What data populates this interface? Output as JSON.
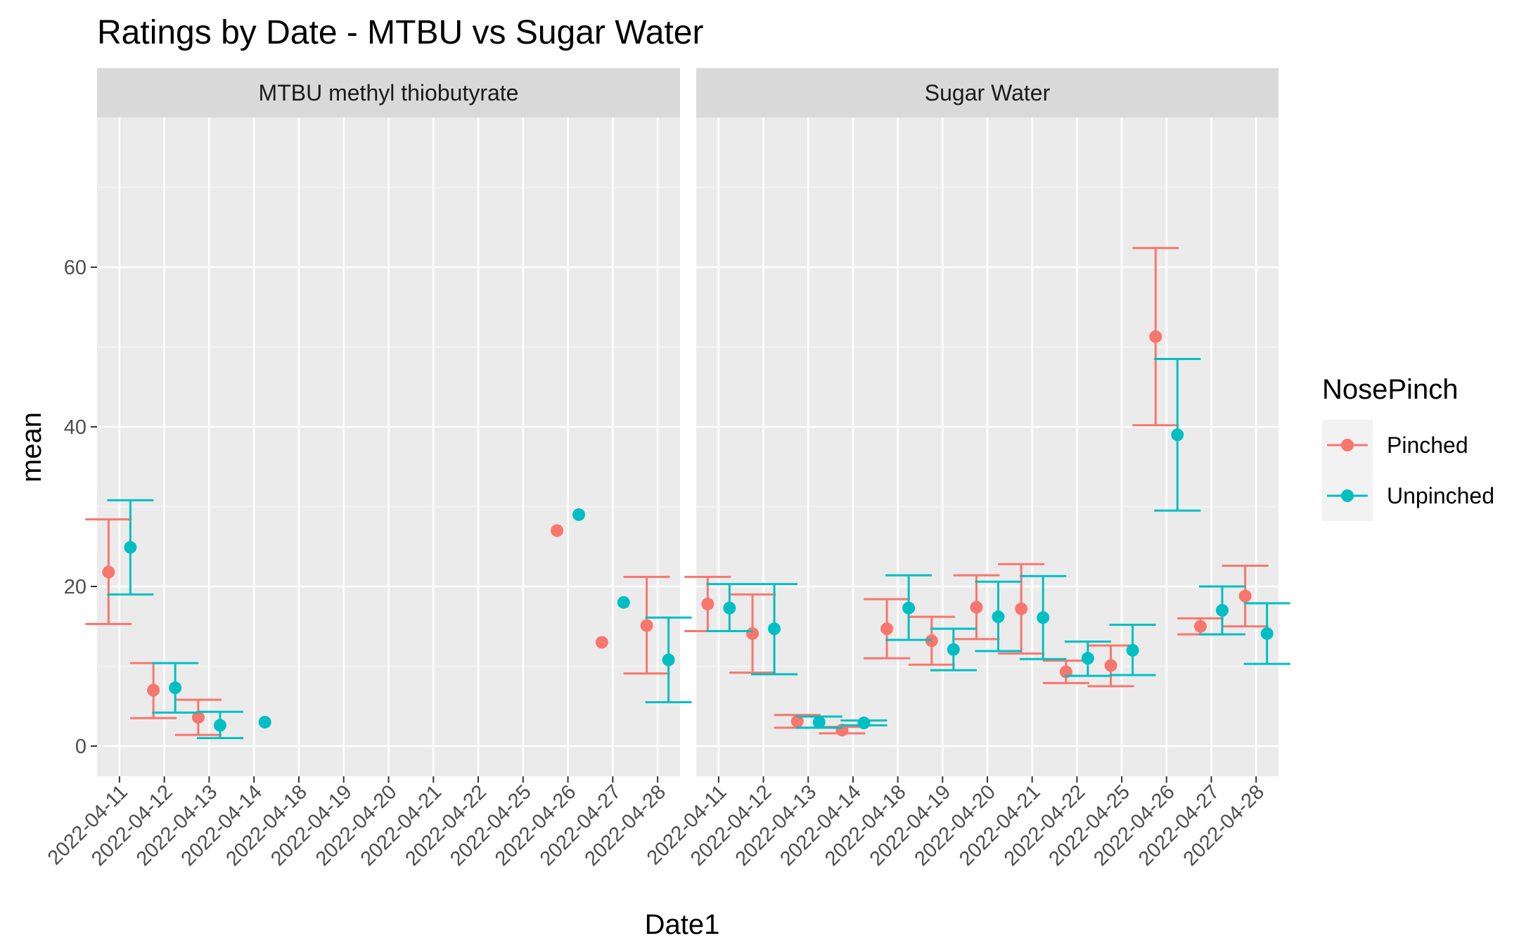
{
  "chart_data": {
    "type": "scatter",
    "title": "Ratings by Date - MTBU vs Sugar Water",
    "xlabel": "Date1",
    "ylabel": "mean",
    "ylim": [
      -4,
      79
    ],
    "yticks": [
      0,
      20,
      40,
      60
    ],
    "grid": true,
    "legend": {
      "title": "NosePinch",
      "position": "right"
    },
    "colors": {
      "Pinched": "#F8766D",
      "Unpinched": "#00BFC4"
    },
    "panels": [
      {
        "label": "MTBU methyl thiobutyrate",
        "categories": [
          "2022-04-11",
          "2022-04-12",
          "2022-04-13",
          "2022-04-14",
          "2022-04-18",
          "2022-04-19",
          "2022-04-20",
          "2022-04-21",
          "2022-04-22",
          "2022-04-25",
          "2022-04-26",
          "2022-04-27",
          "2022-04-28"
        ],
        "series": [
          {
            "name": "Pinched",
            "points": [
              {
                "x": "2022-04-11",
                "y": 21.8,
                "ymin": 15.3,
                "ymax": 28.4
              },
              {
                "x": "2022-04-12",
                "y": 7.0,
                "ymin": 3.5,
                "ymax": 10.4
              },
              {
                "x": "2022-04-13",
                "y": 3.6,
                "ymin": 1.4,
                "ymax": 5.8
              },
              {
                "x": "2022-04-26",
                "y": 27.0
              },
              {
                "x": "2022-04-27",
                "y": 13.0
              },
              {
                "x": "2022-04-28",
                "y": 15.1,
                "ymin": 9.1,
                "ymax": 21.2
              }
            ]
          },
          {
            "name": "Unpinched",
            "points": [
              {
                "x": "2022-04-11",
                "y": 24.9,
                "ymin": 19.0,
                "ymax": 30.8
              },
              {
                "x": "2022-04-12",
                "y": 7.3,
                "ymin": 4.2,
                "ymax": 10.4
              },
              {
                "x": "2022-04-13",
                "y": 2.6,
                "ymin": 1.0,
                "ymax": 4.3
              },
              {
                "x": "2022-04-14",
                "y": 3.0
              },
              {
                "x": "2022-04-26",
                "y": 29.0
              },
              {
                "x": "2022-04-27",
                "y": 18.0
              },
              {
                "x": "2022-04-28",
                "y": 10.8,
                "ymin": 5.5,
                "ymax": 16.1
              }
            ]
          }
        ]
      },
      {
        "label": "Sugar Water",
        "categories": [
          "2022-04-11",
          "2022-04-12",
          "2022-04-13",
          "2022-04-14",
          "2022-04-18",
          "2022-04-19",
          "2022-04-20",
          "2022-04-21",
          "2022-04-22",
          "2022-04-25",
          "2022-04-26",
          "2022-04-27",
          "2022-04-28"
        ],
        "series": [
          {
            "name": "Pinched",
            "points": [
              {
                "x": "2022-04-11",
                "y": 17.8,
                "ymin": 14.4,
                "ymax": 21.2
              },
              {
                "x": "2022-04-12",
                "y": 14.1,
                "ymin": 9.2,
                "ymax": 19.0
              },
              {
                "x": "2022-04-13",
                "y": 3.1,
                "ymin": 2.3,
                "ymax": 3.9
              },
              {
                "x": "2022-04-14",
                "y": 2.0,
                "ymin": 1.6,
                "ymax": 2.4
              },
              {
                "x": "2022-04-18",
                "y": 14.7,
                "ymin": 11.0,
                "ymax": 18.4
              },
              {
                "x": "2022-04-19",
                "y": 13.2,
                "ymin": 10.2,
                "ymax": 16.2
              },
              {
                "x": "2022-04-20",
                "y": 17.4,
                "ymin": 13.4,
                "ymax": 21.4
              },
              {
                "x": "2022-04-21",
                "y": 17.2,
                "ymin": 11.6,
                "ymax": 22.8
              },
              {
                "x": "2022-04-22",
                "y": 9.3,
                "ymin": 7.9,
                "ymax": 10.7
              },
              {
                "x": "2022-04-25",
                "y": 10.1,
                "ymin": 7.5,
                "ymax": 12.6
              },
              {
                "x": "2022-04-26",
                "y": 51.3,
                "ymin": 40.2,
                "ymax": 62.4
              },
              {
                "x": "2022-04-27",
                "y": 15.0,
                "ymin": 14.0,
                "ymax": 16.0
              },
              {
                "x": "2022-04-28",
                "y": 18.8,
                "ymin": 15.0,
                "ymax": 22.6
              }
            ]
          },
          {
            "name": "Unpinched",
            "points": [
              {
                "x": "2022-04-11",
                "y": 17.3,
                "ymin": 14.4,
                "ymax": 20.3
              },
              {
                "x": "2022-04-12",
                "y": 14.7,
                "ymin": 9.0,
                "ymax": 20.3
              },
              {
                "x": "2022-04-13",
                "y": 3.0,
                "ymin": 2.3,
                "ymax": 3.7
              },
              {
                "x": "2022-04-14",
                "y": 2.9,
                "ymin": 2.6,
                "ymax": 3.2
              },
              {
                "x": "2022-04-18",
                "y": 17.3,
                "ymin": 13.3,
                "ymax": 21.4
              },
              {
                "x": "2022-04-19",
                "y": 12.1,
                "ymin": 9.5,
                "ymax": 14.7
              },
              {
                "x": "2022-04-20",
                "y": 16.2,
                "ymin": 11.9,
                "ymax": 20.6
              },
              {
                "x": "2022-04-21",
                "y": 16.1,
                "ymin": 10.9,
                "ymax": 21.3
              },
              {
                "x": "2022-04-22",
                "y": 11.0,
                "ymin": 8.8,
                "ymax": 13.1
              },
              {
                "x": "2022-04-25",
                "y": 12.0,
                "ymin": 8.9,
                "ymax": 15.2
              },
              {
                "x": "2022-04-26",
                "y": 39.0,
                "ymin": 29.5,
                "ymax": 48.5
              },
              {
                "x": "2022-04-27",
                "y": 17.0,
                "ymin": 14.0,
                "ymax": 20.0
              },
              {
                "x": "2022-04-28",
                "y": 14.1,
                "ymin": 10.3,
                "ymax": 17.9
              }
            ]
          }
        ]
      }
    ]
  }
}
